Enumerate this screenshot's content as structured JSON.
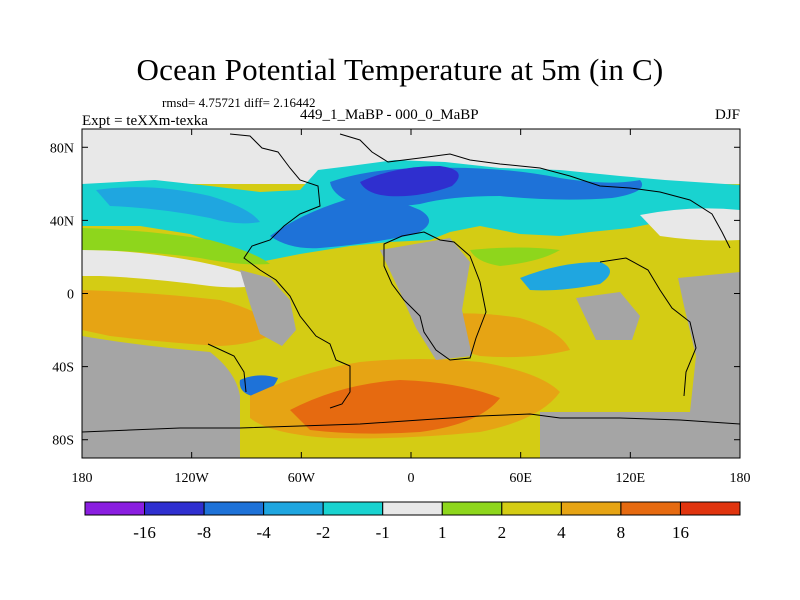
{
  "title": "Ocean Potential Temperature at 5m (in C)",
  "stats": "rmsd= 4.75721 diff= 2.16442",
  "subtitle": "449_1_MaBP - 000_0_MaBP",
  "left_label": "Expt = teXXm-texka",
  "right_label": "DJF",
  "axes": {
    "y_ticks": [
      {
        "label": "80N",
        "lat": 80
      },
      {
        "label": "40N",
        "lat": 40
      },
      {
        "label": "0",
        "lat": 0
      },
      {
        "label": "40S",
        "lat": -40
      },
      {
        "label": "80S",
        "lat": -80
      }
    ],
    "x_ticks": [
      {
        "label": "180",
        "lon": -180
      },
      {
        "label": "120W",
        "lon": -120
      },
      {
        "label": "60W",
        "lon": -60
      },
      {
        "label": "0",
        "lon": 0
      },
      {
        "label": "60E",
        "lon": 60
      },
      {
        "label": "120E",
        "lon": 120
      },
      {
        "label": "180",
        "lon": 180
      }
    ]
  },
  "colorbar": {
    "colors": [
      "#8a1ee0",
      "#2f2fcf",
      "#1e72d8",
      "#1fa6e0",
      "#19d3d0",
      "#e8e8e8",
      "#8ed61c",
      "#d4cc14",
      "#e6a414",
      "#e66a10",
      "#e0340e"
    ],
    "labels": [
      "-16",
      "-8",
      "-4",
      "-2",
      "-1",
      "1",
      "2",
      "4",
      "8",
      "16"
    ]
  },
  "colors": {
    "land": "#a5a5a5",
    "near_zero": "#e8e8e8",
    "coast": "#000000"
  }
}
